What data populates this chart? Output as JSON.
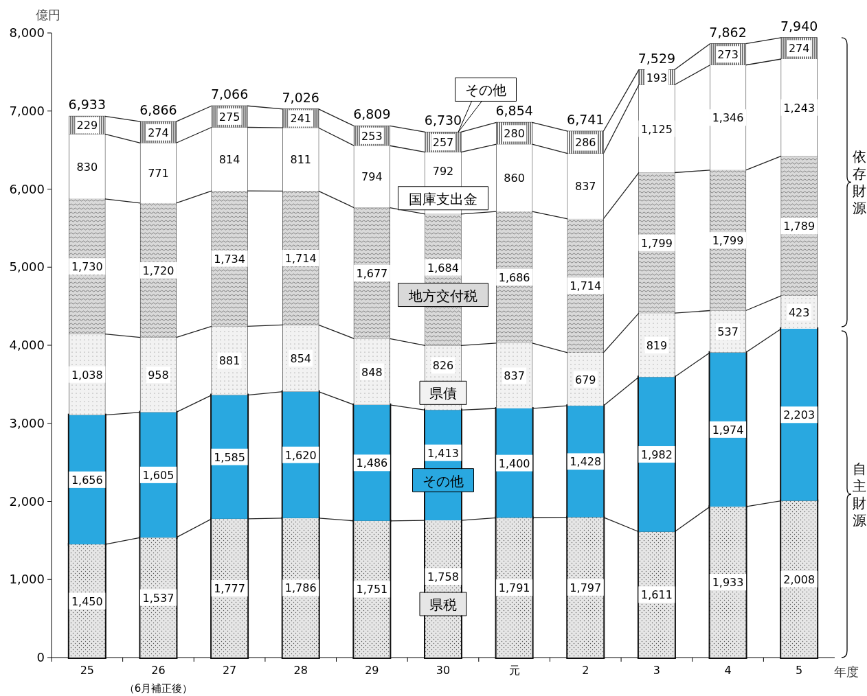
{
  "chart_data": {
    "type": "bar",
    "stacked": true,
    "ylabel": "億円",
    "xlabel": "年度",
    "categories": [
      "25",
      "26",
      "27",
      "28",
      "29",
      "30",
      "元",
      "2",
      "3",
      "4",
      "5"
    ],
    "ylim": [
      0,
      8000
    ],
    "yticks": [
      0,
      {
        "value": 1000,
        "label": "1,000"
      },
      {
        "value": 2000,
        "label": "2,000"
      },
      {
        "value": 3000,
        "label": "3,000"
      },
      {
        "value": 4000,
        "label": "4,000"
      },
      {
        "value": 5000,
        "label": "5,000"
      },
      {
        "value": 6000,
        "label": "6,000"
      },
      {
        "value": 7000,
        "label": "7,000"
      },
      {
        "value": 8000,
        "label": "8,000"
      }
    ],
    "series": [
      {
        "name": "県税",
        "color": "#e6e6e6",
        "values": [
          1450,
          1537,
          1777,
          1786,
          1751,
          1758,
          1791,
          1797,
          1611,
          1933,
          2008
        ],
        "value_labels": [
          "1,450",
          "1,537",
          "1,777",
          "1,786",
          "1,751",
          "1,758",
          "1,791",
          "1,797",
          "1,611",
          "1,933",
          "2,008"
        ]
      },
      {
        "name": "その他",
        "color": "#29a8e0",
        "values": [
          1656,
          1605,
          1585,
          1620,
          1486,
          1413,
          1400,
          1428,
          1982,
          1974,
          2203
        ],
        "value_labels": [
          "1,656",
          "1,605",
          "1,585",
          "1,620",
          "1,486",
          "1,413",
          "1,400",
          "1,428",
          "1,982",
          "1,974",
          "2,203"
        ]
      },
      {
        "name": "県債",
        "color": "#f2f2f2",
        "values": [
          1038,
          958,
          881,
          854,
          848,
          826,
          837,
          679,
          819,
          537,
          423
        ],
        "value_labels": [
          "1,038",
          "958",
          "881",
          "854",
          "848",
          "826",
          "837",
          "679",
          "819",
          "537",
          "423"
        ]
      },
      {
        "name": "地方交付税",
        "color": "#d9d9d9",
        "values": [
          1730,
          1720,
          1734,
          1714,
          1677,
          1684,
          1686,
          1714,
          1799,
          1799,
          1789
        ],
        "value_labels": [
          "1,730",
          "1,720",
          "1,734",
          "1,714",
          "1,677",
          "1,684",
          "1,686",
          "1,714",
          "1,799",
          "1,799",
          "1,789"
        ]
      },
      {
        "name": "国庫支出金",
        "color": "#ffffff",
        "values": [
          830,
          771,
          814,
          811,
          794,
          792,
          860,
          837,
          1125,
          1346,
          1243
        ],
        "value_labels": [
          "830",
          "771",
          "814",
          "811",
          "794",
          "792",
          "860",
          "837",
          "1,125",
          "1,346",
          "1,243"
        ]
      },
      {
        "name": "その他",
        "color": "#ffffff",
        "values": [
          229,
          274,
          275,
          241,
          253,
          257,
          280,
          286,
          193,
          273,
          274
        ],
        "value_labels": [
          "229",
          "274",
          "275",
          "241",
          "253",
          "257",
          "280",
          "286",
          "193",
          "273",
          "274"
        ]
      }
    ],
    "totals": [
      "6,933",
      "6,866",
      "7,066",
      "7,026",
      "6,809",
      "6,730",
      "6,854",
      "6,741",
      "7,529",
      "7,862",
      "7,940"
    ],
    "annotations": [
      "（6月補正後）",
      "依存財源",
      "自主財源"
    ]
  }
}
